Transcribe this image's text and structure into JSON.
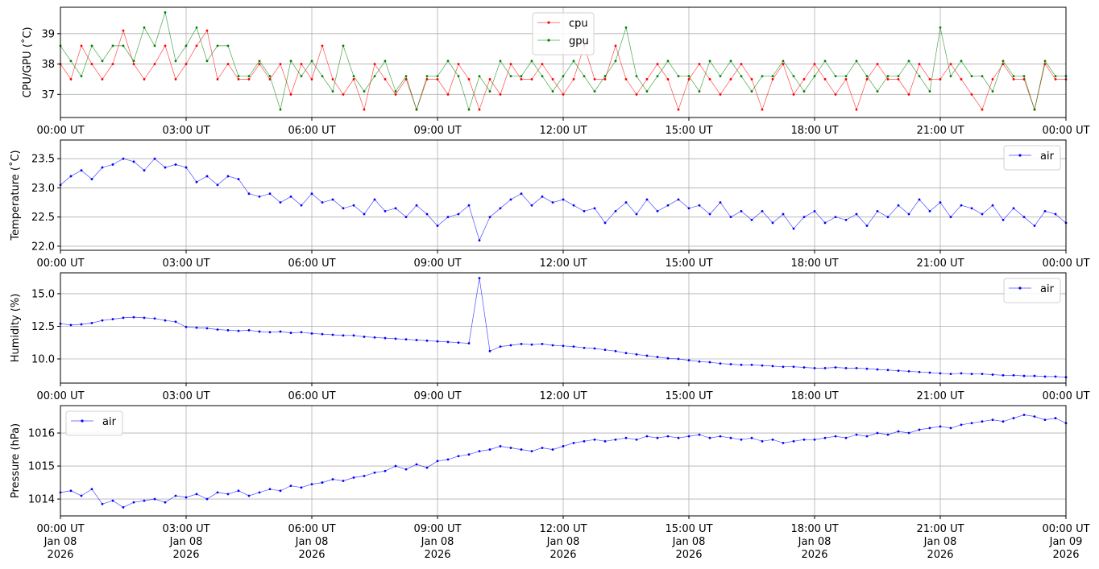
{
  "chart_data": [
    {
      "type": "line",
      "ylabel": "CPU/GPU (˚C)",
      "ylim": [
        36.24,
        39.87
      ],
      "yticks": [
        37,
        38,
        39
      ],
      "ytick_labels": [
        "37",
        "38",
        "39"
      ],
      "xlim": [
        "00:00",
        "24:00"
      ],
      "xtick_labels": [
        "00:00 UT",
        "03:00 UT",
        "06:00 UT",
        "09:00 UT",
        "12:00 UT",
        "15:00 UT",
        "18:00 UT",
        "21:00 UT",
        "00:00 UT"
      ],
      "grid": true,
      "legend": "top-center",
      "series": [
        {
          "name": "cpu",
          "color": "#ff0000",
          "values": [
            38.0,
            37.5,
            38.6,
            38.0,
            37.5,
            38.0,
            39.1,
            38.0,
            37.5,
            38.0,
            38.6,
            37.5,
            38.0,
            38.6,
            39.1,
            37.5,
            38.0,
            37.5,
            37.5,
            38.0,
            37.5,
            38.0,
            37.0,
            38.0,
            37.5,
            38.6,
            37.5,
            37.0,
            37.5,
            36.5,
            38.0,
            37.5,
            37.0,
            37.5,
            36.5,
            37.5,
            37.5,
            37.0,
            38.0,
            37.5,
            36.5,
            37.5,
            37.0,
            38.0,
            37.5,
            37.5,
            38.0,
            37.5,
            37.0,
            37.5,
            38.6,
            37.5,
            37.5,
            38.6,
            37.5,
            37.0,
            37.5,
            38.0,
            37.5,
            36.5,
            37.5,
            38.0,
            37.5,
            37.0,
            37.5,
            38.0,
            37.5,
            36.5,
            37.5,
            38.0,
            37.0,
            37.5,
            38.0,
            37.5,
            37.0,
            37.5,
            36.5,
            37.5,
            38.0,
            37.5,
            37.5,
            37.0,
            38.0,
            37.5,
            37.5,
            38.0,
            37.5,
            37.0,
            36.5,
            37.5,
            38.0,
            37.5,
            37.5,
            36.5,
            38.0,
            37.5,
            37.5
          ]
        },
        {
          "name": "gpu",
          "color": "#008000",
          "values": [
            38.6,
            38.1,
            37.6,
            38.6,
            38.1,
            38.6,
            38.6,
            38.1,
            39.2,
            38.6,
            39.7,
            38.1,
            38.6,
            39.2,
            38.1,
            38.6,
            38.6,
            37.6,
            37.6,
            38.1,
            37.6,
            36.5,
            38.1,
            37.6,
            38.1,
            37.6,
            37.1,
            38.6,
            37.6,
            37.1,
            37.6,
            38.1,
            37.1,
            37.6,
            36.5,
            37.6,
            37.6,
            38.1,
            37.6,
            36.5,
            37.6,
            37.1,
            38.1,
            37.6,
            37.6,
            38.1,
            37.6,
            37.1,
            37.6,
            38.1,
            37.6,
            37.1,
            37.6,
            38.1,
            39.2,
            37.6,
            37.1,
            37.6,
            38.1,
            37.6,
            37.6,
            37.1,
            38.1,
            37.6,
            38.1,
            37.6,
            37.1,
            37.6,
            37.6,
            38.1,
            37.6,
            37.1,
            37.6,
            38.1,
            37.6,
            37.6,
            38.1,
            37.6,
            37.1,
            37.6,
            37.6,
            38.1,
            37.6,
            37.1,
            39.2,
            37.6,
            38.1,
            37.6,
            37.6,
            37.1,
            38.1,
            37.6,
            37.6,
            36.5,
            38.1,
            37.6,
            37.6
          ]
        }
      ]
    },
    {
      "type": "line",
      "ylabel": "Temperature (˚C)",
      "ylim": [
        21.93,
        23.82
      ],
      "yticks": [
        22.0,
        22.5,
        23.0,
        23.5
      ],
      "ytick_labels": [
        "22.0",
        "22.5",
        "23.0",
        "23.5"
      ],
      "xlim": [
        "00:00",
        "24:00"
      ],
      "xtick_labels": [
        "00:00 UT",
        "03:00 UT",
        "06:00 UT",
        "09:00 UT",
        "12:00 UT",
        "15:00 UT",
        "18:00 UT",
        "21:00 UT",
        "00:00 UT"
      ],
      "grid": true,
      "legend": "top-right",
      "series": [
        {
          "name": "air",
          "color": "#0000ff",
          "values": [
            23.05,
            23.2,
            23.3,
            23.15,
            23.35,
            23.4,
            23.5,
            23.45,
            23.3,
            23.5,
            23.35,
            23.4,
            23.35,
            23.1,
            23.2,
            23.05,
            23.2,
            23.15,
            22.9,
            22.85,
            22.9,
            22.75,
            22.85,
            22.7,
            22.9,
            22.75,
            22.8,
            22.65,
            22.7,
            22.55,
            22.8,
            22.6,
            22.65,
            22.5,
            22.7,
            22.55,
            22.35,
            22.5,
            22.55,
            22.7,
            22.1,
            22.5,
            22.65,
            22.8,
            22.9,
            22.7,
            22.85,
            22.75,
            22.8,
            22.7,
            22.6,
            22.65,
            22.4,
            22.6,
            22.75,
            22.55,
            22.8,
            22.6,
            22.7,
            22.8,
            22.65,
            22.7,
            22.55,
            22.75,
            22.5,
            22.6,
            22.45,
            22.6,
            22.4,
            22.55,
            22.3,
            22.5,
            22.6,
            22.4,
            22.5,
            22.45,
            22.55,
            22.35,
            22.6,
            22.5,
            22.7,
            22.55,
            22.8,
            22.6,
            22.75,
            22.5,
            22.7,
            22.65,
            22.55,
            22.7,
            22.45,
            22.65,
            22.5,
            22.35,
            22.6,
            22.55,
            22.4
          ]
        }
      ]
    },
    {
      "type": "line",
      "ylabel": "Humidity (%)",
      "ylim": [
        8.15,
        16.6
      ],
      "yticks": [
        10.0,
        12.5,
        15.0
      ],
      "ytick_labels": [
        "10.0",
        "12.5",
        "15.0"
      ],
      "xlim": [
        "00:00",
        "24:00"
      ],
      "xtick_labels": [
        "00:00 UT",
        "03:00 UT",
        "06:00 UT",
        "09:00 UT",
        "12:00 UT",
        "15:00 UT",
        "18:00 UT",
        "21:00 UT",
        "00:00 UT"
      ],
      "grid": true,
      "legend": "top-right",
      "series": [
        {
          "name": "air",
          "color": "#0000ff",
          "values": [
            12.7,
            12.6,
            12.65,
            12.75,
            12.95,
            13.05,
            13.15,
            13.2,
            13.15,
            13.1,
            12.95,
            12.85,
            12.45,
            12.4,
            12.35,
            12.25,
            12.2,
            12.15,
            12.2,
            12.1,
            12.05,
            12.1,
            12.0,
            12.05,
            11.95,
            11.9,
            11.85,
            11.8,
            11.8,
            11.7,
            11.65,
            11.6,
            11.55,
            11.5,
            11.45,
            11.4,
            11.35,
            11.3,
            11.25,
            11.2,
            16.2,
            10.6,
            10.95,
            11.05,
            11.15,
            11.1,
            11.15,
            11.05,
            11.0,
            10.95,
            10.85,
            10.8,
            10.7,
            10.6,
            10.45,
            10.35,
            10.25,
            10.15,
            10.05,
            10.0,
            9.9,
            9.8,
            9.75,
            9.65,
            9.6,
            9.55,
            9.55,
            9.5,
            9.45,
            9.4,
            9.4,
            9.35,
            9.3,
            9.3,
            9.35,
            9.3,
            9.3,
            9.25,
            9.2,
            9.15,
            9.1,
            9.05,
            9.0,
            8.95,
            8.9,
            8.85,
            8.9,
            8.85,
            8.85,
            8.8,
            8.75,
            8.75,
            8.7,
            8.7,
            8.65,
            8.65,
            8.6
          ]
        }
      ]
    },
    {
      "type": "line",
      "ylabel": "Pressure (hPa)",
      "ylim": [
        1013.49,
        1016.83
      ],
      "yticks": [
        1014,
        1015,
        1016
      ],
      "ytick_labels": [
        "1014",
        "1015",
        "1016"
      ],
      "xlim": [
        "2026-01-08 00:00",
        "2026-01-09 00:00"
      ],
      "xtick_labels": [
        [
          "00:00 UT",
          "Jan 08",
          "2026"
        ],
        [
          "03:00 UT",
          "Jan 08",
          "2026"
        ],
        [
          "06:00 UT",
          "Jan 08",
          "2026"
        ],
        [
          "09:00 UT",
          "Jan 08",
          "2026"
        ],
        [
          "12:00 UT",
          "Jan 08",
          "2026"
        ],
        [
          "15:00 UT",
          "Jan 08",
          "2026"
        ],
        [
          "18:00 UT",
          "Jan 08",
          "2026"
        ],
        [
          "21:00 UT",
          "Jan 08",
          "2026"
        ],
        [
          "00:00 UT",
          "Jan 09",
          "2026"
        ]
      ],
      "grid": true,
      "legend": "top-left",
      "series": [
        {
          "name": "air",
          "color": "#0000ff",
          "values": [
            1014.2,
            1014.25,
            1014.1,
            1014.3,
            1013.85,
            1013.95,
            1013.75,
            1013.9,
            1013.95,
            1014.0,
            1013.9,
            1014.1,
            1014.05,
            1014.15,
            1014.0,
            1014.2,
            1014.15,
            1014.25,
            1014.1,
            1014.2,
            1014.3,
            1014.25,
            1014.4,
            1014.35,
            1014.45,
            1014.5,
            1014.6,
            1014.55,
            1014.65,
            1014.7,
            1014.8,
            1014.85,
            1015.0,
            1014.9,
            1015.05,
            1014.95,
            1015.15,
            1015.2,
            1015.3,
            1015.35,
            1015.45,
            1015.5,
            1015.6,
            1015.55,
            1015.5,
            1015.45,
            1015.55,
            1015.5,
            1015.6,
            1015.7,
            1015.75,
            1015.8,
            1015.75,
            1015.8,
            1015.85,
            1015.8,
            1015.9,
            1015.85,
            1015.9,
            1015.85,
            1015.9,
            1015.95,
            1015.85,
            1015.9,
            1015.85,
            1015.8,
            1015.85,
            1015.75,
            1015.8,
            1015.7,
            1015.75,
            1015.8,
            1015.8,
            1015.85,
            1015.9,
            1015.85,
            1015.95,
            1015.9,
            1016.0,
            1015.95,
            1016.05,
            1016.0,
            1016.1,
            1016.15,
            1016.2,
            1016.15,
            1016.25,
            1016.3,
            1016.35,
            1016.4,
            1016.35,
            1016.45,
            1016.55,
            1016.5,
            1016.4,
            1016.45,
            1016.3
          ]
        }
      ]
    }
  ]
}
